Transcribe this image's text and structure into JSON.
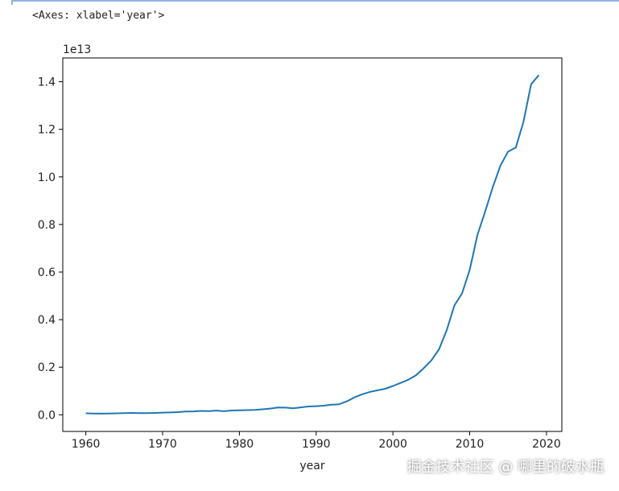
{
  "output_repr": "<Axes: xlabel='year'>",
  "watermark": "掘金技术社区 @ 哪里的破水瓶",
  "chart_data": {
    "type": "line",
    "xlabel": "year",
    "ylabel": "",
    "offset_label": "1e13",
    "xlim": [
      1957,
      2022
    ],
    "ylim": [
      -0.07,
      1.5
    ],
    "xticks": [
      1960,
      1970,
      1980,
      1990,
      2000,
      2010,
      2020
    ],
    "yticks": [
      0.0,
      0.2,
      0.4,
      0.6,
      0.8,
      1.0,
      1.2,
      1.4
    ],
    "ytick_labels": [
      "0.0",
      "0.2",
      "0.4",
      "0.6",
      "0.8",
      "1.0",
      "1.2",
      "1.4"
    ],
    "grid": false,
    "line_color": "#1f77b4",
    "x": [
      1960,
      1961,
      1962,
      1963,
      1964,
      1965,
      1966,
      1967,
      1968,
      1969,
      1970,
      1971,
      1972,
      1973,
      1974,
      1975,
      1976,
      1977,
      1978,
      1979,
      1980,
      1981,
      1982,
      1983,
      1984,
      1985,
      1986,
      1987,
      1988,
      1989,
      1990,
      1991,
      1992,
      1993,
      1994,
      1995,
      1996,
      1997,
      1998,
      1999,
      2000,
      2001,
      2002,
      2003,
      2004,
      2005,
      2006,
      2007,
      2008,
      2009,
      2010,
      2011,
      2012,
      2013,
      2014,
      2015,
      2016,
      2017,
      2018,
      2019
    ],
    "values": [
      0.00597,
      0.005,
      0.00472,
      0.00507,
      0.00597,
      0.00704,
      0.00767,
      0.00729,
      0.00709,
      0.00797,
      0.00926,
      0.00998,
      0.01137,
      0.01385,
      0.01442,
      0.01634,
      0.01539,
      0.01749,
      0.01495,
      0.01783,
      0.01911,
      0.01958,
      0.0205,
      0.02303,
      0.02599,
      0.03094,
      0.03008,
      0.0273,
      0.03123,
      0.03477,
      0.03609,
      0.03834,
      0.04269,
      0.04447,
      0.05643,
      0.07345,
      0.08637,
      0.09615,
      0.1029,
      0.1094,
      0.12113,
      0.13394,
      0.14706,
      0.16603,
      0.19553,
      0.2286,
      0.27521,
      0.35504,
      0.45943,
      0.51017,
      0.60872,
      0.75515,
      0.85322,
      0.95704,
      1.04757,
      1.10616,
      1.12333,
      1.23104,
      1.38948,
      1.42799
    ]
  }
}
